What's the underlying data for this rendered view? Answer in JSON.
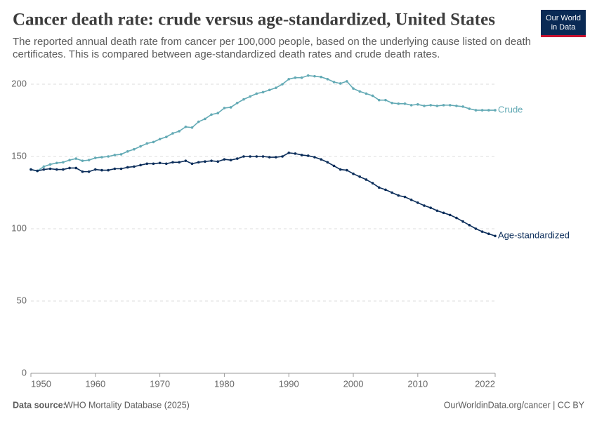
{
  "chart_data": {
    "type": "line",
    "title": "Cancer death rate: crude versus age-standardized, United States",
    "subtitle_lines": [
      "The reported annual death rate from cancer per 100,000 people, based on the underlying cause listed on death",
      "certificates. This is compared between age-standardized death rates and crude death rates."
    ],
    "logo_lines": [
      "Our World",
      "in Data"
    ],
    "source_label": "Data source:",
    "source": "WHO Mortality Database (2025)",
    "credit": "OurWorldinData.org/cancer | CC BY",
    "x": [
      1950,
      1951,
      1952,
      1953,
      1954,
      1955,
      1956,
      1957,
      1958,
      1959,
      1960,
      1961,
      1962,
      1963,
      1964,
      1965,
      1966,
      1967,
      1968,
      1969,
      1970,
      1971,
      1972,
      1973,
      1974,
      1975,
      1976,
      1977,
      1978,
      1979,
      1980,
      1981,
      1982,
      1983,
      1984,
      1985,
      1986,
      1987,
      1988,
      1989,
      1990,
      1991,
      1992,
      1993,
      1994,
      1995,
      1996,
      1997,
      1998,
      1999,
      2000,
      2001,
      2002,
      2003,
      2004,
      2005,
      2006,
      2007,
      2008,
      2009,
      2010,
      2011,
      2012,
      2013,
      2014,
      2015,
      2016,
      2017,
      2018,
      2019,
      2020,
      2021,
      2022
    ],
    "series": [
      {
        "name": "Crude",
        "color": "#63aab5",
        "values": [
          141,
          140,
          143,
          144.5,
          145.5,
          146,
          147.5,
          148.5,
          147,
          147.5,
          149,
          149.5,
          150,
          151,
          151.5,
          153.5,
          155,
          157,
          159,
          160,
          162,
          163.5,
          166,
          167.5,
          170.5,
          170,
          174,
          176,
          179,
          180,
          183.5,
          184,
          187,
          189.5,
          191.5,
          193.5,
          194.5,
          196,
          197.5,
          200,
          203.5,
          204.5,
          204.5,
          206,
          205.5,
          205,
          203.5,
          201.5,
          200.5,
          202,
          197,
          195,
          193.5,
          192,
          189,
          189,
          187,
          186.5,
          186.5,
          185.5,
          186,
          185,
          185.5,
          185,
          185.5,
          185.5,
          185,
          184.5,
          183,
          182,
          182,
          182,
          182
        ]
      },
      {
        "name": "Age-standardized",
        "color": "#0b2d5a",
        "values": [
          141,
          140,
          141,
          141.5,
          141,
          141,
          142,
          142,
          139.5,
          139.5,
          141,
          140.5,
          140.5,
          141.5,
          141.5,
          142.5,
          143,
          144,
          145,
          145,
          145.5,
          145,
          146,
          146,
          147,
          145,
          146,
          146.5,
          147,
          146.5,
          148,
          147.5,
          148.5,
          150,
          150,
          150,
          150,
          149.5,
          149.5,
          150,
          152.5,
          152,
          151,
          150.5,
          149.5,
          148,
          146,
          143.5,
          141,
          140.5,
          138,
          136,
          134,
          131.5,
          128.5,
          127,
          125,
          123,
          122,
          120,
          118,
          116,
          114.5,
          112.5,
          111,
          109.5,
          107.5,
          105,
          102.5,
          100,
          98,
          96.5,
          95
        ]
      }
    ],
    "xlim": [
      1950,
      2022
    ],
    "xticks": [
      1950,
      1960,
      1970,
      1980,
      1990,
      2000,
      2010,
      2022
    ],
    "ylim": [
      0,
      200
    ],
    "yticks": [
      0,
      50,
      100,
      150,
      200
    ],
    "grid": true
  }
}
